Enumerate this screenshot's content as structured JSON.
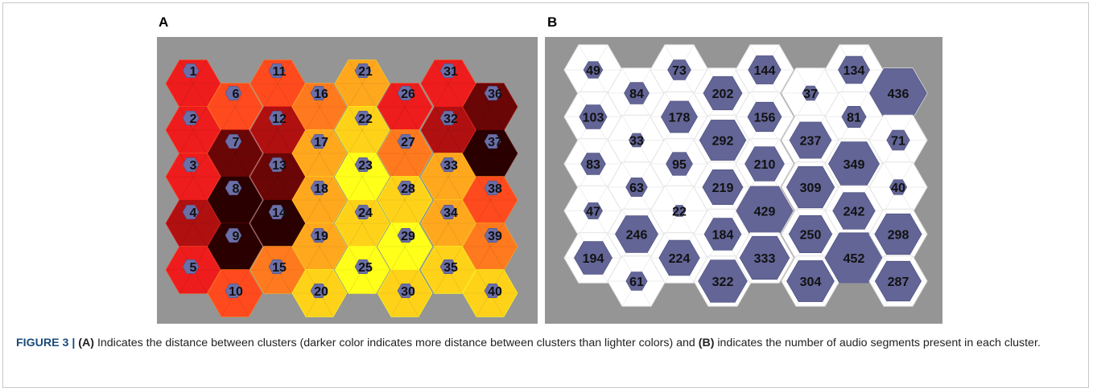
{
  "panel_a": {
    "letter": "A",
    "node_labels": [
      "1",
      "2",
      "3",
      "4",
      "5",
      "6",
      "7",
      "8",
      "9",
      "10",
      "11",
      "12",
      "13",
      "14",
      "15",
      "16",
      "17",
      "18",
      "19",
      "20",
      "21",
      "22",
      "23",
      "24",
      "25",
      "26",
      "27",
      "28",
      "29",
      "30",
      "31",
      "32",
      "33",
      "34",
      "35",
      "36",
      "37",
      "38",
      "39",
      "40"
    ],
    "palette": [
      "#ffff1a",
      "#ffd21a",
      "#ffa81e",
      "#ff7a1e",
      "#ff4a1e",
      "#ee1c1c",
      "#b01010",
      "#6a0606",
      "#2a0000"
    ],
    "node_color": "#6b6fa8"
  },
  "panel_b": {
    "letter": "B",
    "grid": [
      [
        "49",
        "103",
        "83",
        "47",
        "194"
      ],
      [
        "84",
        "33",
        "63",
        "246",
        "61"
      ],
      [
        "73",
        "178",
        "95",
        "22",
        "224"
      ],
      [
        "202",
        "292",
        "219",
        "184",
        "322"
      ],
      [
        "144",
        "156",
        "210",
        "429",
        "333"
      ],
      [
        "37",
        "237",
        "309",
        "250",
        "304"
      ],
      [
        "134",
        "81",
        "349",
        "242",
        "452"
      ],
      [
        "436",
        "71",
        "40",
        "298",
        "287"
      ]
    ],
    "max_count": 452,
    "hex_color": "#626596",
    "cell_color": "#ffffff",
    "background": "#959595"
  },
  "caption": {
    "head": "FIGURE 3 |",
    "a_marker": "(A)",
    "a_text": " Indicates the distance between clusters (darker color indicates more distance between clusters than lighter colors) and ",
    "b_marker": "(B)",
    "b_text": " indicates the number of audio segments present in each cluster."
  }
}
